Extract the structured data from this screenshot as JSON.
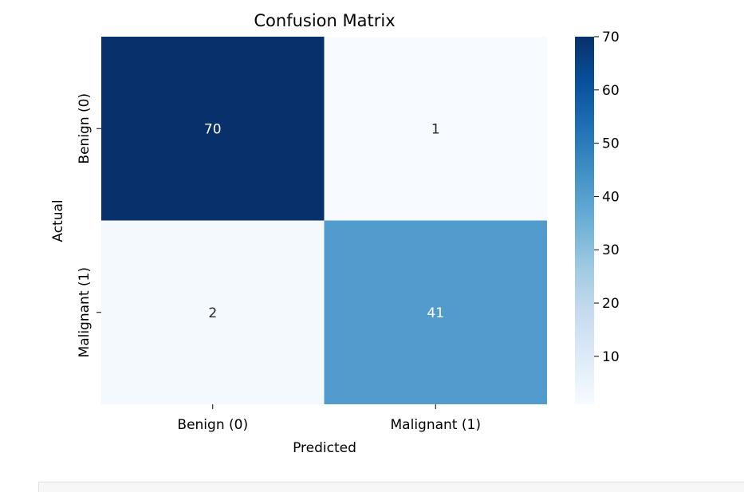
{
  "chart_data": {
    "type": "heatmap",
    "title": "Confusion Matrix",
    "xlabel": "Predicted",
    "ylabel": "Actual",
    "x_categories": [
      "Benign (0)",
      "Malignant (1)"
    ],
    "y_categories": [
      "Benign (0)",
      "Malignant (1)"
    ],
    "values": [
      [
        70,
        1
      ],
      [
        2,
        41
      ]
    ],
    "colormap": "Blues",
    "colorbar": {
      "range": [
        1,
        70
      ],
      "ticks": [
        10,
        20,
        30,
        40,
        50,
        60,
        70
      ]
    }
  }
}
